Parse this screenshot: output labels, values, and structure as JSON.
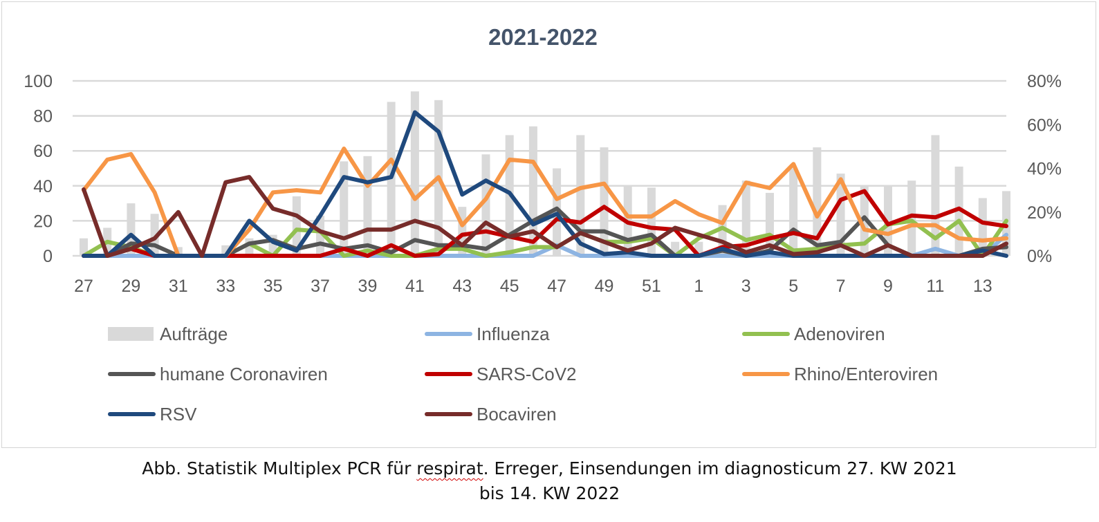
{
  "chart_data": {
    "type": "bar+line",
    "title": "2021-2022",
    "x_categories": [
      "27",
      "28",
      "29",
      "30",
      "31",
      "32",
      "33",
      "34",
      "35",
      "36",
      "37",
      "38",
      "39",
      "40",
      "41",
      "42",
      "43",
      "44",
      "45",
      "46",
      "47",
      "48",
      "49",
      "50",
      "51",
      "52",
      "1",
      "2",
      "3",
      "4",
      "5",
      "6",
      "7",
      "8",
      "9",
      "10",
      "11",
      "12",
      "13",
      "14"
    ],
    "x_tick_labels": [
      "27",
      "29",
      "31",
      "33",
      "35",
      "37",
      "39",
      "41",
      "43",
      "45",
      "47",
      "49",
      "51",
      "1",
      "3",
      "5",
      "7",
      "9",
      "11",
      "13"
    ],
    "y_left": {
      "min": 0,
      "max": 100,
      "ticks": [
        "0",
        "20",
        "40",
        "60",
        "80",
        "100"
      ]
    },
    "y_right": {
      "min": 0,
      "max": 0.8,
      "ticks": [
        "0%",
        "20%",
        "40%",
        "60%",
        "80%"
      ]
    },
    "grid": true,
    "legend_position": "bottom",
    "series": [
      {
        "name": "Aufträge",
        "kind": "bar",
        "axis": "left",
        "color": "#d9d9d9",
        "values": [
          10,
          16,
          30,
          24,
          5,
          0,
          6,
          10,
          12,
          34,
          23,
          54,
          57,
          88,
          94,
          89,
          28,
          58,
          69,
          74,
          50,
          69,
          62,
          40,
          39,
          8,
          8,
          29,
          43,
          36,
          50,
          62,
          47,
          40,
          40,
          43,
          69,
          51,
          33,
          37
        ]
      },
      {
        "name": "Influenza",
        "kind": "line",
        "axis": "left",
        "color": "#8db4e2",
        "values": [
          0,
          0,
          0,
          0,
          0,
          0,
          0,
          0,
          0,
          0,
          0,
          0,
          0,
          0,
          0,
          0,
          0,
          0,
          0,
          0,
          6,
          0,
          0,
          0,
          0,
          0,
          0,
          0,
          0,
          0,
          0,
          0,
          0,
          0,
          0,
          0,
          4,
          0,
          0,
          12
        ]
      },
      {
        "name": "Adenoviren",
        "kind": "line",
        "axis": "left",
        "color": "#92c050",
        "values": [
          0,
          8,
          5,
          0,
          0,
          0,
          0,
          7,
          0,
          15,
          14,
          0,
          3,
          0,
          0,
          4,
          4,
          0,
          2,
          5,
          5,
          13,
          8,
          8,
          10,
          0,
          10,
          16,
          9,
          12,
          3,
          4,
          6,
          7,
          18,
          20,
          10,
          20,
          0,
          20
        ]
      },
      {
        "name": "humane Coronaviren",
        "kind": "line",
        "axis": "left",
        "color": "#555555",
        "values": [
          0,
          0,
          7,
          6,
          0,
          0,
          0,
          7,
          9,
          4,
          7,
          4,
          6,
          2,
          9,
          6,
          6,
          4,
          12,
          20,
          27,
          14,
          14,
          9,
          12,
          0,
          0,
          3,
          0,
          3,
          15,
          6,
          8,
          22,
          6,
          0,
          0,
          0,
          4,
          5
        ]
      },
      {
        "name": "SARS-CoV2",
        "kind": "line",
        "axis": "left",
        "color": "#c00000",
        "values": [
          0,
          0,
          4,
          0,
          0,
          0,
          0,
          0,
          0,
          0,
          0,
          4,
          0,
          6,
          0,
          1,
          12,
          14,
          11,
          8,
          21,
          19,
          28,
          19,
          16,
          15,
          0,
          5,
          6,
          10,
          13,
          10,
          32,
          37,
          18,
          23,
          22,
          27,
          19,
          17
        ]
      },
      {
        "name": "Rhino/Enteroviren",
        "kind": "line",
        "axis": "right",
        "color": "#f79646",
        "values": [
          0.3,
          0.44,
          0.465,
          0.29,
          0,
          0,
          0,
          0.12,
          0.29,
          0.3,
          0.29,
          0.49,
          0.32,
          0.44,
          0.26,
          0.36,
          0.14,
          0.26,
          0.44,
          0.43,
          0.26,
          0.31,
          0.33,
          0.18,
          0.18,
          0.25,
          0.19,
          0.15,
          0.335,
          0.31,
          0.42,
          0.18,
          0.35,
          0.12,
          0.1,
          0.14,
          0.14,
          0.08,
          0.07,
          0.08
        ]
      },
      {
        "name": "RSV",
        "kind": "line",
        "axis": "left",
        "color": "#1f497d",
        "values": [
          0,
          0,
          12,
          0,
          0,
          0,
          0,
          20,
          8,
          3,
          23,
          45,
          42,
          45,
          82,
          71,
          35,
          43,
          36,
          18,
          24,
          7,
          1,
          2,
          0,
          0,
          0,
          4,
          0,
          2,
          0,
          0,
          0,
          0,
          0,
          0,
          0,
          0,
          3,
          0
        ]
      },
      {
        "name": "Bocaviren",
        "kind": "line",
        "axis": "left",
        "color": "#772c2a",
        "values": [
          38,
          0,
          4,
          10,
          25,
          0,
          42,
          45,
          27,
          23,
          14,
          10,
          15,
          15,
          20,
          16,
          6,
          19,
          11,
          14,
          5,
          13,
          8,
          3,
          7,
          16,
          12,
          8,
          2,
          6,
          1,
          2,
          6,
          0,
          6,
          0,
          0,
          0,
          0,
          7
        ]
      }
    ]
  },
  "caption": {
    "line1_before": "Abb. Statistik Multiplex PCR für ",
    "line1_underlined": "respirat",
    "line1_after": ". Erreger, Einsendungen im diagnosticum 27. KW 2021",
    "line2": "bis 14. KW 2022"
  }
}
